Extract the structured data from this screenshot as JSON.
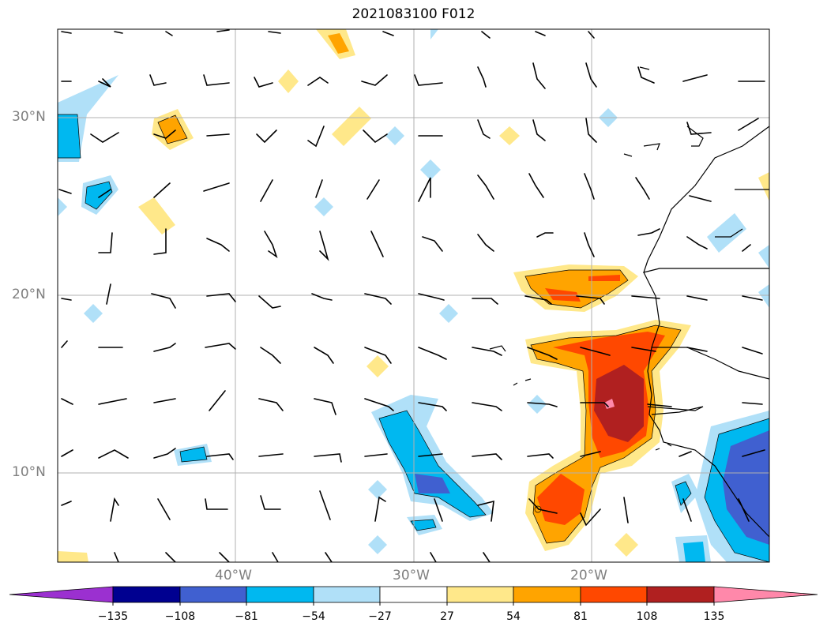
{
  "title": "2021083100 F012",
  "lat_labels": [
    "30°N",
    "20°N",
    "10°N"
  ],
  "lon_labels": [
    "40°W",
    "30°W",
    "20°W"
  ],
  "colorbar": {
    "ticks": [
      "−135",
      "−108",
      "−81",
      "−54",
      "−27",
      "27",
      "54",
      "81",
      "108",
      "135"
    ],
    "colors": [
      "#9b30d0",
      "#000090",
      "#4060d0",
      "#00b8f0",
      "#b0e0f8",
      "#ffffff",
      "#ffe88a",
      "#ffa400",
      "#ff4800",
      "#b02020",
      "#ff88aa"
    ]
  }
}
